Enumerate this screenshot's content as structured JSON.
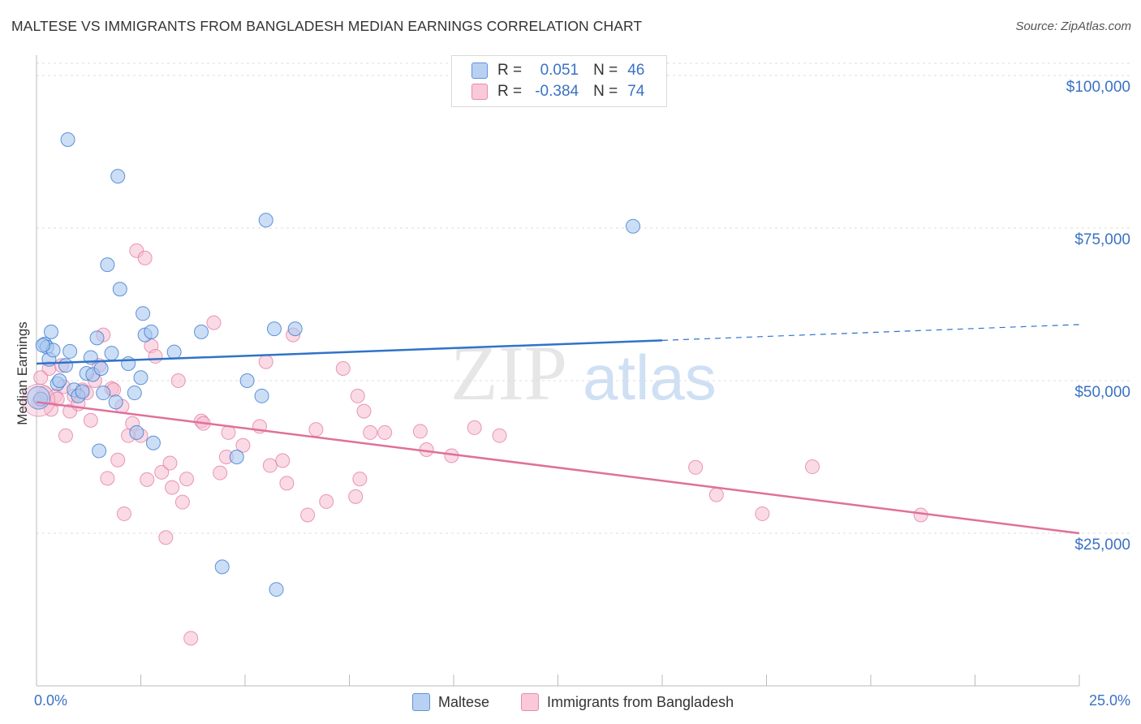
{
  "title": "MALTESE VS IMMIGRANTS FROM BANGLADESH MEDIAN EARNINGS CORRELATION CHART",
  "source": "Source: ZipAtlas.com",
  "watermark": {
    "zip": "ZIP",
    "atlas": "atlas"
  },
  "legend": {
    "r_label": "R =",
    "n_label": "N =",
    "maltese": {
      "r": "0.051",
      "n": "46"
    },
    "bangladesh": {
      "r": "-0.384",
      "n": "74"
    }
  },
  "bottom_legend": {
    "maltese": "Maltese",
    "bangladesh": "Immigrants from Bangladesh"
  },
  "colors": {
    "blue": "#2f73c9",
    "blue_fill": "#aac8f0",
    "pink": "#e0709a",
    "pink_fill": "#f6bcd0",
    "tick_text": "#3a72c4"
  },
  "chart_data": {
    "type": "scatter",
    "title": "MALTESE VS IMMIGRANTS FROM BANGLADESH MEDIAN EARNINGS CORRELATION CHART",
    "xlabel": "",
    "ylabel": "Median Earnings",
    "xlim": [
      0,
      25
    ],
    "ylim": [
      0,
      102000
    ],
    "x_tick_labels": [
      "0.0%",
      "25.0%"
    ],
    "y_ticks": [
      25000,
      50000,
      75000,
      100000
    ],
    "y_tick_labels": [
      "$25,000",
      "$50,000",
      "$75,000",
      "$100,000"
    ],
    "series": [
      {
        "name": "Maltese",
        "trend": {
          "x_start": 0.0,
          "y_start": 52800,
          "x_end": 15.0,
          "y_end": 56600,
          "x_dash_end": 25.0,
          "y_dash_end": 59200
        },
        "points": [
          [
            0.1,
            47000
          ],
          [
            0.2,
            56000
          ],
          [
            0.25,
            55500
          ],
          [
            0.3,
            53500
          ],
          [
            0.35,
            58000
          ],
          [
            0.4,
            55000
          ],
          [
            0.5,
            49500
          ],
          [
            0.55,
            50000
          ],
          [
            0.7,
            52500
          ],
          [
            0.75,
            89500
          ],
          [
            0.8,
            54800
          ],
          [
            0.9,
            48500
          ],
          [
            1.0,
            47500
          ],
          [
            1.1,
            48200
          ],
          [
            1.2,
            51200
          ],
          [
            1.3,
            53800
          ],
          [
            1.35,
            51000
          ],
          [
            1.45,
            57000
          ],
          [
            1.5,
            38500
          ],
          [
            1.55,
            52000
          ],
          [
            1.6,
            48000
          ],
          [
            1.7,
            69000
          ],
          [
            1.8,
            54500
          ],
          [
            1.95,
            83500
          ],
          [
            1.9,
            46500
          ],
          [
            2.0,
            65000
          ],
          [
            2.2,
            52800
          ],
          [
            2.35,
            48000
          ],
          [
            2.4,
            41500
          ],
          [
            2.5,
            50500
          ],
          [
            2.55,
            61000
          ],
          [
            2.6,
            57500
          ],
          [
            2.75,
            58000
          ],
          [
            2.8,
            39800
          ],
          [
            3.3,
            54700
          ],
          [
            3.95,
            58000
          ],
          [
            4.45,
            19500
          ],
          [
            4.8,
            37500
          ],
          [
            5.05,
            50000
          ],
          [
            5.4,
            47500
          ],
          [
            5.5,
            76300
          ],
          [
            5.7,
            58500
          ],
          [
            5.75,
            15800
          ],
          [
            6.2,
            58500
          ],
          [
            14.3,
            75300
          ],
          [
            0.15,
            55800
          ]
        ]
      },
      {
        "name": "Immigrants from Bangladesh",
        "trend": {
          "x_start": 0.0,
          "y_start": 46500,
          "x_end": 25.0,
          "y_end": 25000
        },
        "points": [
          [
            0.05,
            46500
          ],
          [
            0.2,
            48000
          ],
          [
            0.3,
            52000
          ],
          [
            0.45,
            47500
          ],
          [
            0.6,
            52500
          ],
          [
            0.65,
            49000
          ],
          [
            0.7,
            41000
          ],
          [
            0.8,
            45000
          ],
          [
            0.9,
            47500
          ],
          [
            1.0,
            46200
          ],
          [
            1.1,
            48500
          ],
          [
            1.2,
            48000
          ],
          [
            1.3,
            43500
          ],
          [
            1.4,
            50000
          ],
          [
            1.5,
            52500
          ],
          [
            1.6,
            57500
          ],
          [
            1.7,
            34000
          ],
          [
            1.8,
            48700
          ],
          [
            1.85,
            48500
          ],
          [
            1.95,
            37000
          ],
          [
            2.05,
            45800
          ],
          [
            2.1,
            28200
          ],
          [
            2.2,
            41000
          ],
          [
            2.3,
            43000
          ],
          [
            2.4,
            71300
          ],
          [
            2.5,
            41000
          ],
          [
            2.6,
            70100
          ],
          [
            2.65,
            33800
          ],
          [
            2.75,
            55700
          ],
          [
            2.85,
            54000
          ],
          [
            3.0,
            35000
          ],
          [
            3.1,
            24300
          ],
          [
            3.2,
            36500
          ],
          [
            3.25,
            32500
          ],
          [
            3.4,
            50000
          ],
          [
            3.5,
            30100
          ],
          [
            3.6,
            33900
          ],
          [
            3.7,
            7800
          ],
          [
            3.95,
            43400
          ],
          [
            4.0,
            43000
          ],
          [
            4.25,
            59500
          ],
          [
            4.4,
            34900
          ],
          [
            4.55,
            37500
          ],
          [
            4.6,
            41500
          ],
          [
            4.95,
            39400
          ],
          [
            5.35,
            42500
          ],
          [
            5.5,
            53100
          ],
          [
            5.6,
            36100
          ],
          [
            5.9,
            36900
          ],
          [
            6.0,
            33200
          ],
          [
            6.15,
            57500
          ],
          [
            6.5,
            28000
          ],
          [
            6.7,
            42000
          ],
          [
            6.95,
            30200
          ],
          [
            7.35,
            52000
          ],
          [
            7.65,
            31000
          ],
          [
            7.7,
            47500
          ],
          [
            7.75,
            33900
          ],
          [
            7.85,
            45000
          ],
          [
            8.0,
            41500
          ],
          [
            8.35,
            41500
          ],
          [
            9.2,
            41700
          ],
          [
            9.35,
            38700
          ],
          [
            9.95,
            37700
          ],
          [
            10.5,
            42300
          ],
          [
            11.1,
            41000
          ],
          [
            15.8,
            35800
          ],
          [
            16.3,
            31300
          ],
          [
            17.4,
            28200
          ],
          [
            18.6,
            35900
          ],
          [
            21.2,
            28000
          ],
          [
            0.1,
            50500
          ],
          [
            0.35,
            45300
          ],
          [
            0.5,
            47000
          ]
        ]
      }
    ]
  }
}
